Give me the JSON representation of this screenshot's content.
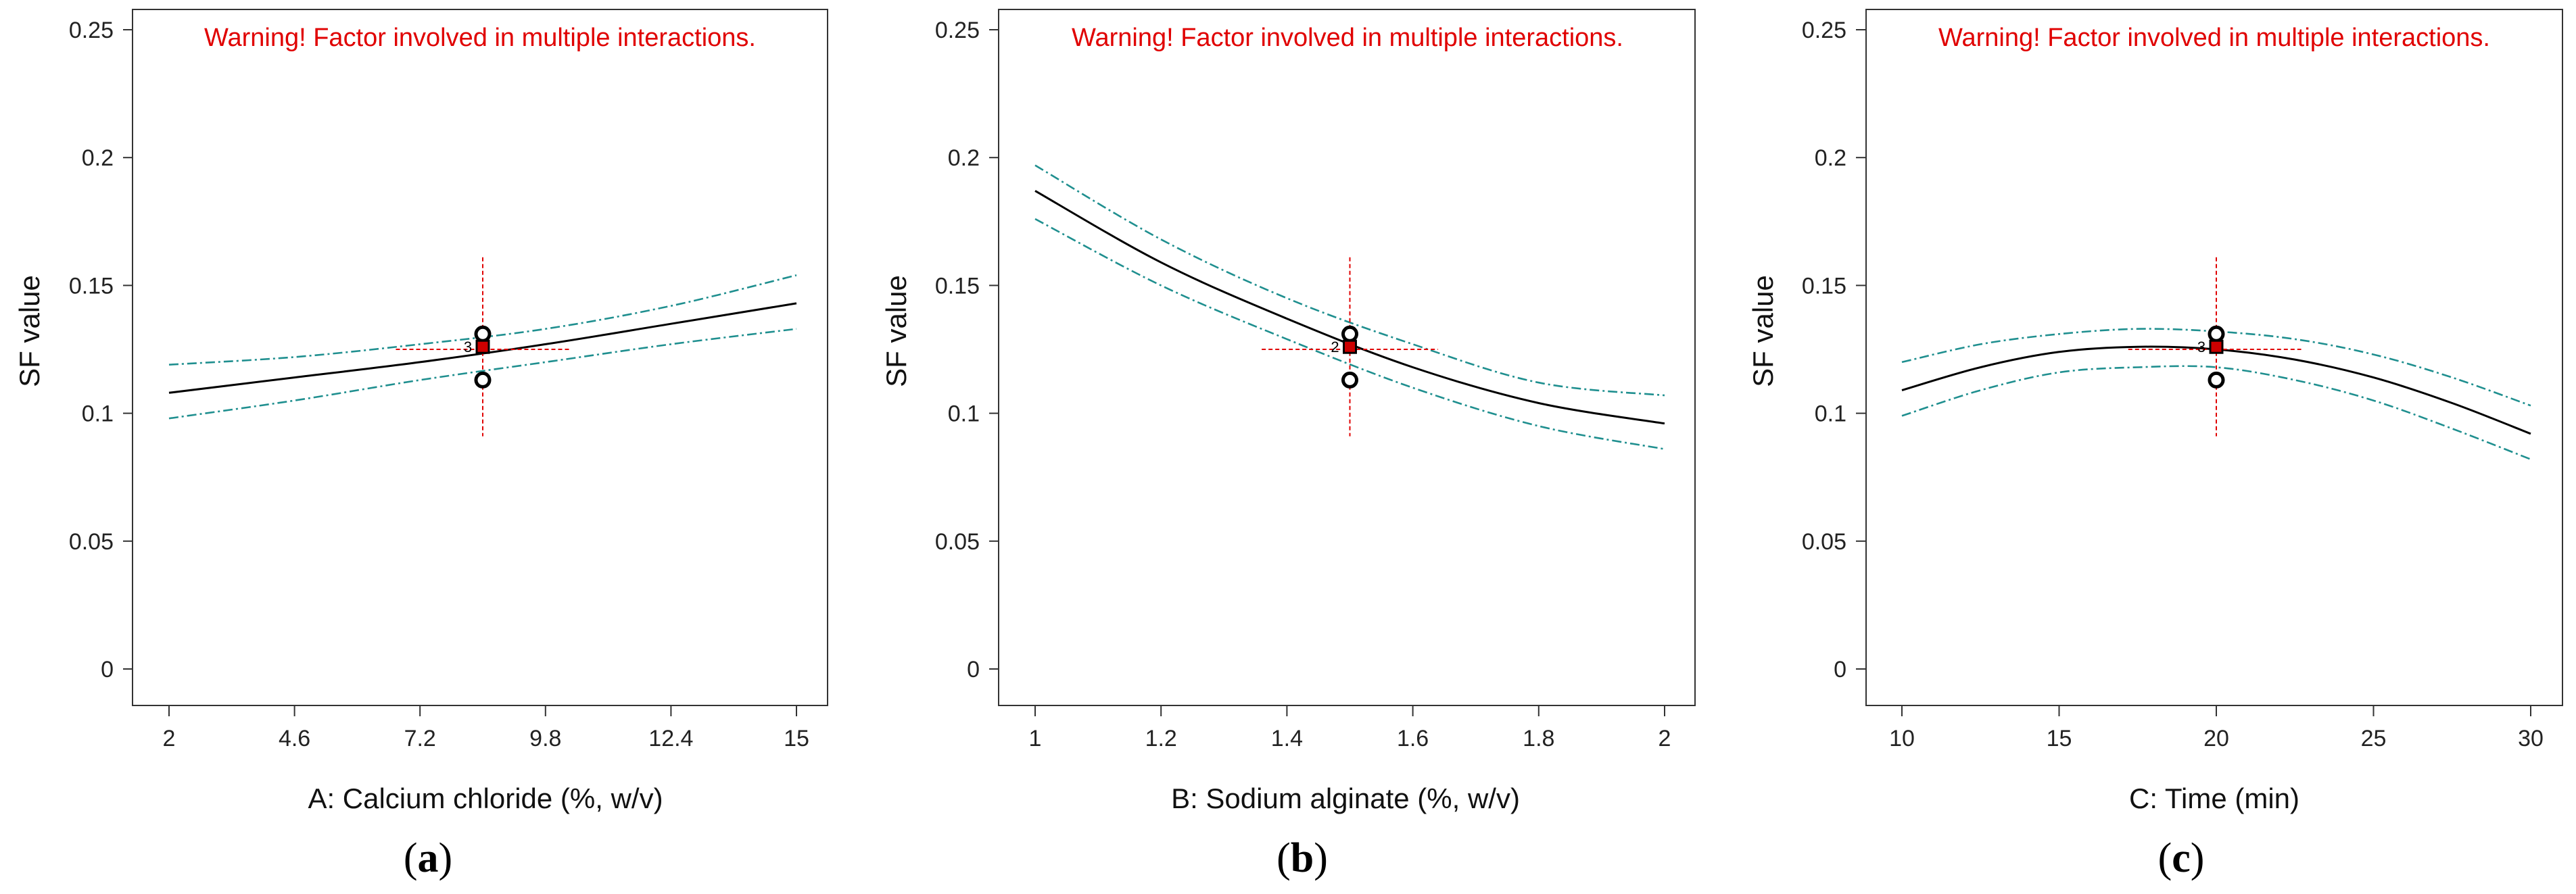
{
  "chart_data": [
    {
      "type": "line",
      "panel_label": {
        "open": "(",
        "letter": "a",
        "close": ")"
      },
      "warning": "Warning! Factor involved in multiple interactions.",
      "xlabel": "A: Calcium chloride (%, w/v)",
      "ylabel": "SF value",
      "xlim": [
        2,
        15
      ],
      "ylim": [
        0,
        0.25
      ],
      "x_ticks": [
        2,
        4.6,
        7.2,
        9.8,
        12.4,
        15
      ],
      "x_tick_labels": [
        "2",
        "4.6",
        "7.2",
        "9.8",
        "12.4",
        "15"
      ],
      "y_ticks": [
        0,
        0.05,
        0.1,
        0.15,
        0.2,
        0.25
      ],
      "y_tick_labels": [
        "0",
        "0.05",
        "0.1",
        "0.15",
        "0.2",
        "0.25"
      ],
      "series": [
        {
          "name": "prediction",
          "x": [
            2,
            4.6,
            7.2,
            9.8,
            12.4,
            15
          ],
          "y": [
            0.108,
            0.114,
            0.12,
            0.127,
            0.135,
            0.143
          ]
        },
        {
          "name": "upper CI",
          "x": [
            2,
            4.6,
            7.2,
            9.8,
            12.4,
            15
          ],
          "y": [
            0.119,
            0.122,
            0.127,
            0.133,
            0.142,
            0.154
          ]
        },
        {
          "name": "lower CI",
          "x": [
            2,
            4.6,
            7.2,
            9.8,
            12.4,
            15
          ],
          "y": [
            0.098,
            0.105,
            0.113,
            0.12,
            0.127,
            0.133
          ]
        }
      ],
      "design_points": [
        {
          "x": 8.5,
          "y": 0.131
        },
        {
          "x": 8.5,
          "y": 0.113
        }
      ],
      "center_point": {
        "x": 8.5,
        "y": 0.126
      },
      "center_label": "3",
      "crosshair": {
        "x": 8.5,
        "y": 0.125,
        "x_range": [
          6.7,
          10.3
        ],
        "y_range": [
          0.091,
          0.161
        ]
      }
    },
    {
      "type": "line",
      "panel_label": {
        "open": "(",
        "letter": "b",
        "close": ")"
      },
      "warning": "Warning! Factor involved in multiple interactions.",
      "xlabel": "B: Sodium alginate (%, w/v)",
      "ylabel": "SF value",
      "xlim": [
        1,
        2
      ],
      "ylim": [
        0,
        0.25
      ],
      "x_ticks": [
        1,
        1.2,
        1.4,
        1.6,
        1.8,
        2
      ],
      "x_tick_labels": [
        "1",
        "1.2",
        "1.4",
        "1.6",
        "1.8",
        "2"
      ],
      "y_ticks": [
        0,
        0.05,
        0.1,
        0.15,
        0.2,
        0.25
      ],
      "y_tick_labels": [
        "0",
        "0.05",
        "0.1",
        "0.15",
        "0.2",
        "0.25"
      ],
      "series": [
        {
          "name": "prediction",
          "x": [
            1,
            1.2,
            1.4,
            1.6,
            1.8,
            2
          ],
          "y": [
            0.187,
            0.159,
            0.137,
            0.118,
            0.104,
            0.096
          ]
        },
        {
          "name": "upper CI",
          "x": [
            1,
            1.2,
            1.4,
            1.6,
            1.8,
            2
          ],
          "y": [
            0.197,
            0.168,
            0.145,
            0.127,
            0.112,
            0.107
          ]
        },
        {
          "name": "lower CI",
          "x": [
            1,
            1.2,
            1.4,
            1.6,
            1.8,
            2
          ],
          "y": [
            0.176,
            0.15,
            0.129,
            0.11,
            0.095,
            0.086
          ]
        }
      ],
      "design_points": [
        {
          "x": 1.5,
          "y": 0.131
        },
        {
          "x": 1.5,
          "y": 0.113
        }
      ],
      "center_point": {
        "x": 1.5,
        "y": 0.126
      },
      "center_label": "2",
      "crosshair": {
        "x": 1.5,
        "y": 0.125,
        "x_range": [
          1.36,
          1.64
        ],
        "y_range": [
          0.091,
          0.161
        ]
      }
    },
    {
      "type": "line",
      "panel_label": {
        "open": "(",
        "letter": "c",
        "close": ")"
      },
      "warning": "Warning! Factor involved in multiple interactions.",
      "xlabel": "C: Time (min)",
      "ylabel": "SF value",
      "xlim": [
        10,
        30
      ],
      "ylim": [
        0,
        0.25
      ],
      "x_ticks": [
        10,
        15,
        20,
        25,
        30
      ],
      "x_tick_labels": [
        "10",
        "15",
        "20",
        "25",
        "30"
      ],
      "y_ticks": [
        0,
        0.05,
        0.1,
        0.15,
        0.2,
        0.25
      ],
      "y_tick_labels": [
        "0",
        "0.05",
        "0.1",
        "0.15",
        "0.2",
        "0.25"
      ],
      "series": [
        {
          "name": "prediction",
          "x": [
            10,
            12.5,
            15,
            17.5,
            20,
            22.5,
            25,
            27.5,
            30
          ],
          "y": [
            0.109,
            0.118,
            0.124,
            0.126,
            0.125,
            0.121,
            0.114,
            0.104,
            0.092
          ]
        },
        {
          "name": "upper CI",
          "x": [
            10,
            12.5,
            15,
            17.5,
            20,
            22.5,
            25,
            27.5,
            30
          ],
          "y": [
            0.12,
            0.127,
            0.131,
            0.133,
            0.132,
            0.129,
            0.123,
            0.114,
            0.103
          ]
        },
        {
          "name": "lower CI",
          "x": [
            10,
            12.5,
            15,
            17.5,
            20,
            22.5,
            25,
            27.5,
            30
          ],
          "y": [
            0.099,
            0.109,
            0.116,
            0.118,
            0.118,
            0.113,
            0.105,
            0.094,
            0.082
          ]
        }
      ],
      "design_points": [
        {
          "x": 20,
          "y": 0.131
        },
        {
          "x": 20,
          "y": 0.113
        }
      ],
      "center_point": {
        "x": 20,
        "y": 0.126
      },
      "center_label": "3",
      "crosshair": {
        "x": 20,
        "y": 0.125,
        "x_range": [
          17.2,
          22.7
        ],
        "y_range": [
          0.091,
          0.161
        ]
      }
    }
  ],
  "colors": {
    "prediction": "#000000",
    "confidence": "#1f8f8f",
    "crosshair": "#e00000",
    "warning": "#e00000",
    "center_point": "#cc0000",
    "axis": "#333333"
  }
}
